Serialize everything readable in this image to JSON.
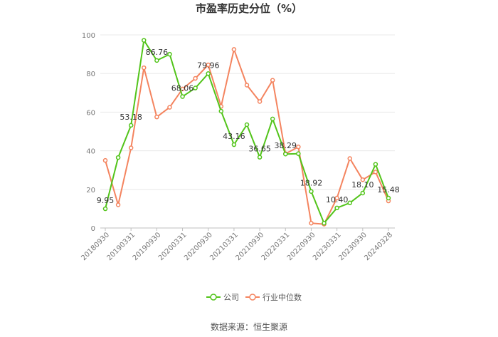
{
  "chart_data": {
    "type": "line",
    "title": "市盈率历史分位（%）",
    "source": "数据来源：恒生聚源",
    "ylim": [
      0,
      100
    ],
    "yticks": [
      0,
      20,
      40,
      60,
      80,
      100
    ],
    "grid": true,
    "legend_position": "bottom",
    "x_tick_labels": [
      "20180930",
      "20190331",
      "20190930",
      "20200331",
      "20200930",
      "20210331",
      "20210930",
      "20220331",
      "20220930",
      "20230331",
      "20230930",
      "20240328"
    ],
    "categories": [
      "20180930",
      "20181231",
      "20190331",
      "20190630",
      "20190930",
      "20191231",
      "20200331",
      "20200630",
      "20200930",
      "20201231",
      "20210331",
      "20210630",
      "20210930",
      "20211231",
      "20220331",
      "20220630",
      "20220930",
      "20221231",
      "20230331",
      "20230630",
      "20230930",
      "20231231",
      "20240328"
    ],
    "series": [
      {
        "name": "公司",
        "color": "#52c41a",
        "values": [
          9.95,
          36.5,
          53.18,
          97.2,
          86.76,
          90.0,
          68.06,
          72.5,
          79.96,
          60.5,
          43.16,
          53.5,
          36.65,
          56.5,
          38.29,
          38.5,
          18.92,
          2.5,
          10.4,
          13.0,
          18.1,
          33.0,
          15.48
        ]
      },
      {
        "name": "行业中位数",
        "color": "#f4845f",
        "values": [
          35.0,
          12.0,
          41.5,
          83.0,
          57.5,
          62.5,
          72.0,
          77.5,
          84.5,
          63.0,
          92.5,
          74.0,
          65.5,
          76.5,
          38.5,
          42.0,
          2.5,
          2.0,
          15.5,
          36.0,
          25.0,
          29.0,
          14.0
        ]
      }
    ],
    "data_labels": [
      {
        "index": 0,
        "text": "9.95"
      },
      {
        "index": 2,
        "text": "53.18"
      },
      {
        "index": 4,
        "text": "86.76"
      },
      {
        "index": 6,
        "text": "68.06"
      },
      {
        "index": 8,
        "text": "79.96"
      },
      {
        "index": 10,
        "text": "43.16"
      },
      {
        "index": 12,
        "text": "36.65"
      },
      {
        "index": 14,
        "text": "38.29"
      },
      {
        "index": 16,
        "text": "18.92"
      },
      {
        "index": 18,
        "text": "10.40"
      },
      {
        "index": 20,
        "text": "18.10"
      },
      {
        "index": 22,
        "text": "15.48"
      }
    ]
  }
}
